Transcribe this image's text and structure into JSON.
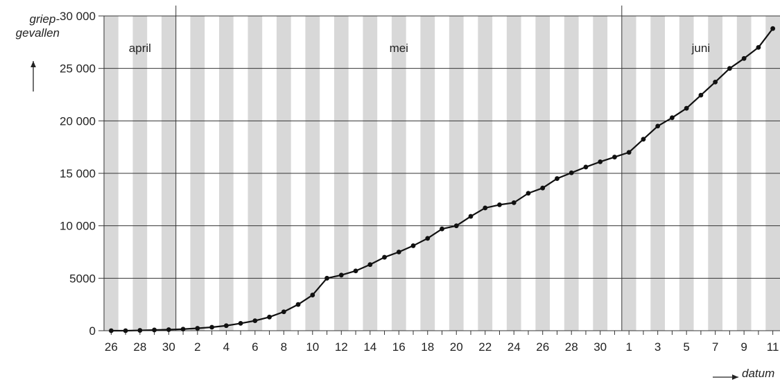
{
  "chart_data": {
    "type": "line",
    "ylabel_line1": "griep-",
    "ylabel_line2": "gevallen",
    "xlabel": "datum",
    "ylim": [
      0,
      30000
    ],
    "yticks": [
      "0",
      "5000",
      "10 000",
      "15 000",
      "20 000",
      "25 000",
      "30 000"
    ],
    "ytick_values": [
      0,
      5000,
      10000,
      15000,
      20000,
      25000,
      30000
    ],
    "grid": true,
    "months": [
      "april",
      "mei",
      "juni"
    ],
    "month_day_counts": [
      5,
      31,
      11
    ],
    "days": [
      26,
      27,
      28,
      29,
      30,
      1,
      2,
      3,
      4,
      5,
      6,
      7,
      8,
      9,
      10,
      11,
      12,
      13,
      14,
      15,
      16,
      17,
      18,
      19,
      20,
      21,
      22,
      23,
      24,
      25,
      26,
      27,
      28,
      29,
      30,
      31,
      1,
      2,
      3,
      4,
      5,
      6,
      7,
      8,
      9,
      10,
      11
    ],
    "xtick_labels": [
      "26",
      "",
      "28",
      "",
      "30",
      "",
      "2",
      "",
      "4",
      "",
      "6",
      "",
      "8",
      "",
      "10",
      "",
      "12",
      "",
      "14",
      "",
      "16",
      "",
      "18",
      "",
      "20",
      "",
      "22",
      "",
      "24",
      "",
      "26",
      "",
      "28",
      "",
      "30",
      "",
      "1",
      "",
      "3",
      "",
      "5",
      "",
      "7",
      "",
      "9",
      "",
      "11"
    ],
    "series": [
      {
        "values": [
          0,
          0,
          30,
          70,
          100,
          150,
          230,
          330,
          480,
          700,
          950,
          1300,
          1800,
          2500,
          3400,
          5000,
          5300,
          5700,
          6300,
          7000,
          7500,
          8100,
          8800,
          9700,
          10000,
          10900,
          11700,
          12000,
          12200,
          13100,
          13600,
          14500,
          15050,
          15600,
          16100,
          16550,
          17000,
          18250,
          19500,
          20300,
          21200,
          22450,
          23700,
          25000,
          25950,
          27000,
          28800
        ]
      }
    ]
  }
}
